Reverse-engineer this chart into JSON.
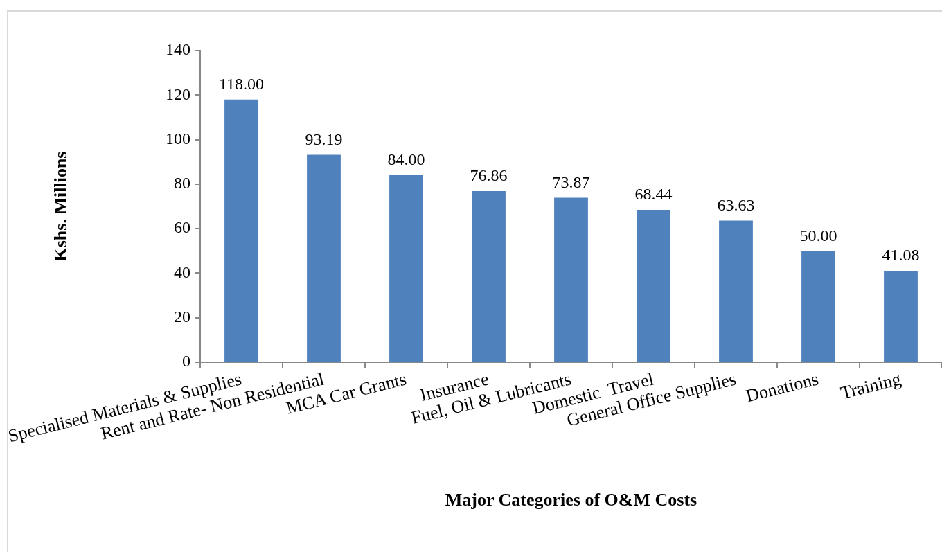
{
  "chart_data": {
    "type": "bar",
    "xlabel": "Major Categories of O&M Costs",
    "ylabel": "Kshs. Millions",
    "categories": [
      "Specialised Materials & Supplies",
      "Rent and Rate- Non Residential",
      "MCA Car Grants",
      "Insurance",
      "Fuel, Oil & Lubricants",
      "Domestic  Travel",
      "General Office Supplies",
      "Donations",
      "Training"
    ],
    "values": [
      118,
      93.19,
      84,
      76.86,
      73.87,
      68.44,
      63.63,
      50,
      41.08
    ],
    "value_labels": [
      "118.00",
      "93.19",
      "84.00",
      "76.86",
      "73.87",
      "68.44",
      "63.63",
      "50.00",
      "41.08"
    ],
    "color": "#4f81bd",
    "ylim": [
      0,
      140
    ],
    "yticks": [
      0,
      20,
      40,
      60,
      80,
      100,
      120,
      140
    ],
    "legend": false
  }
}
